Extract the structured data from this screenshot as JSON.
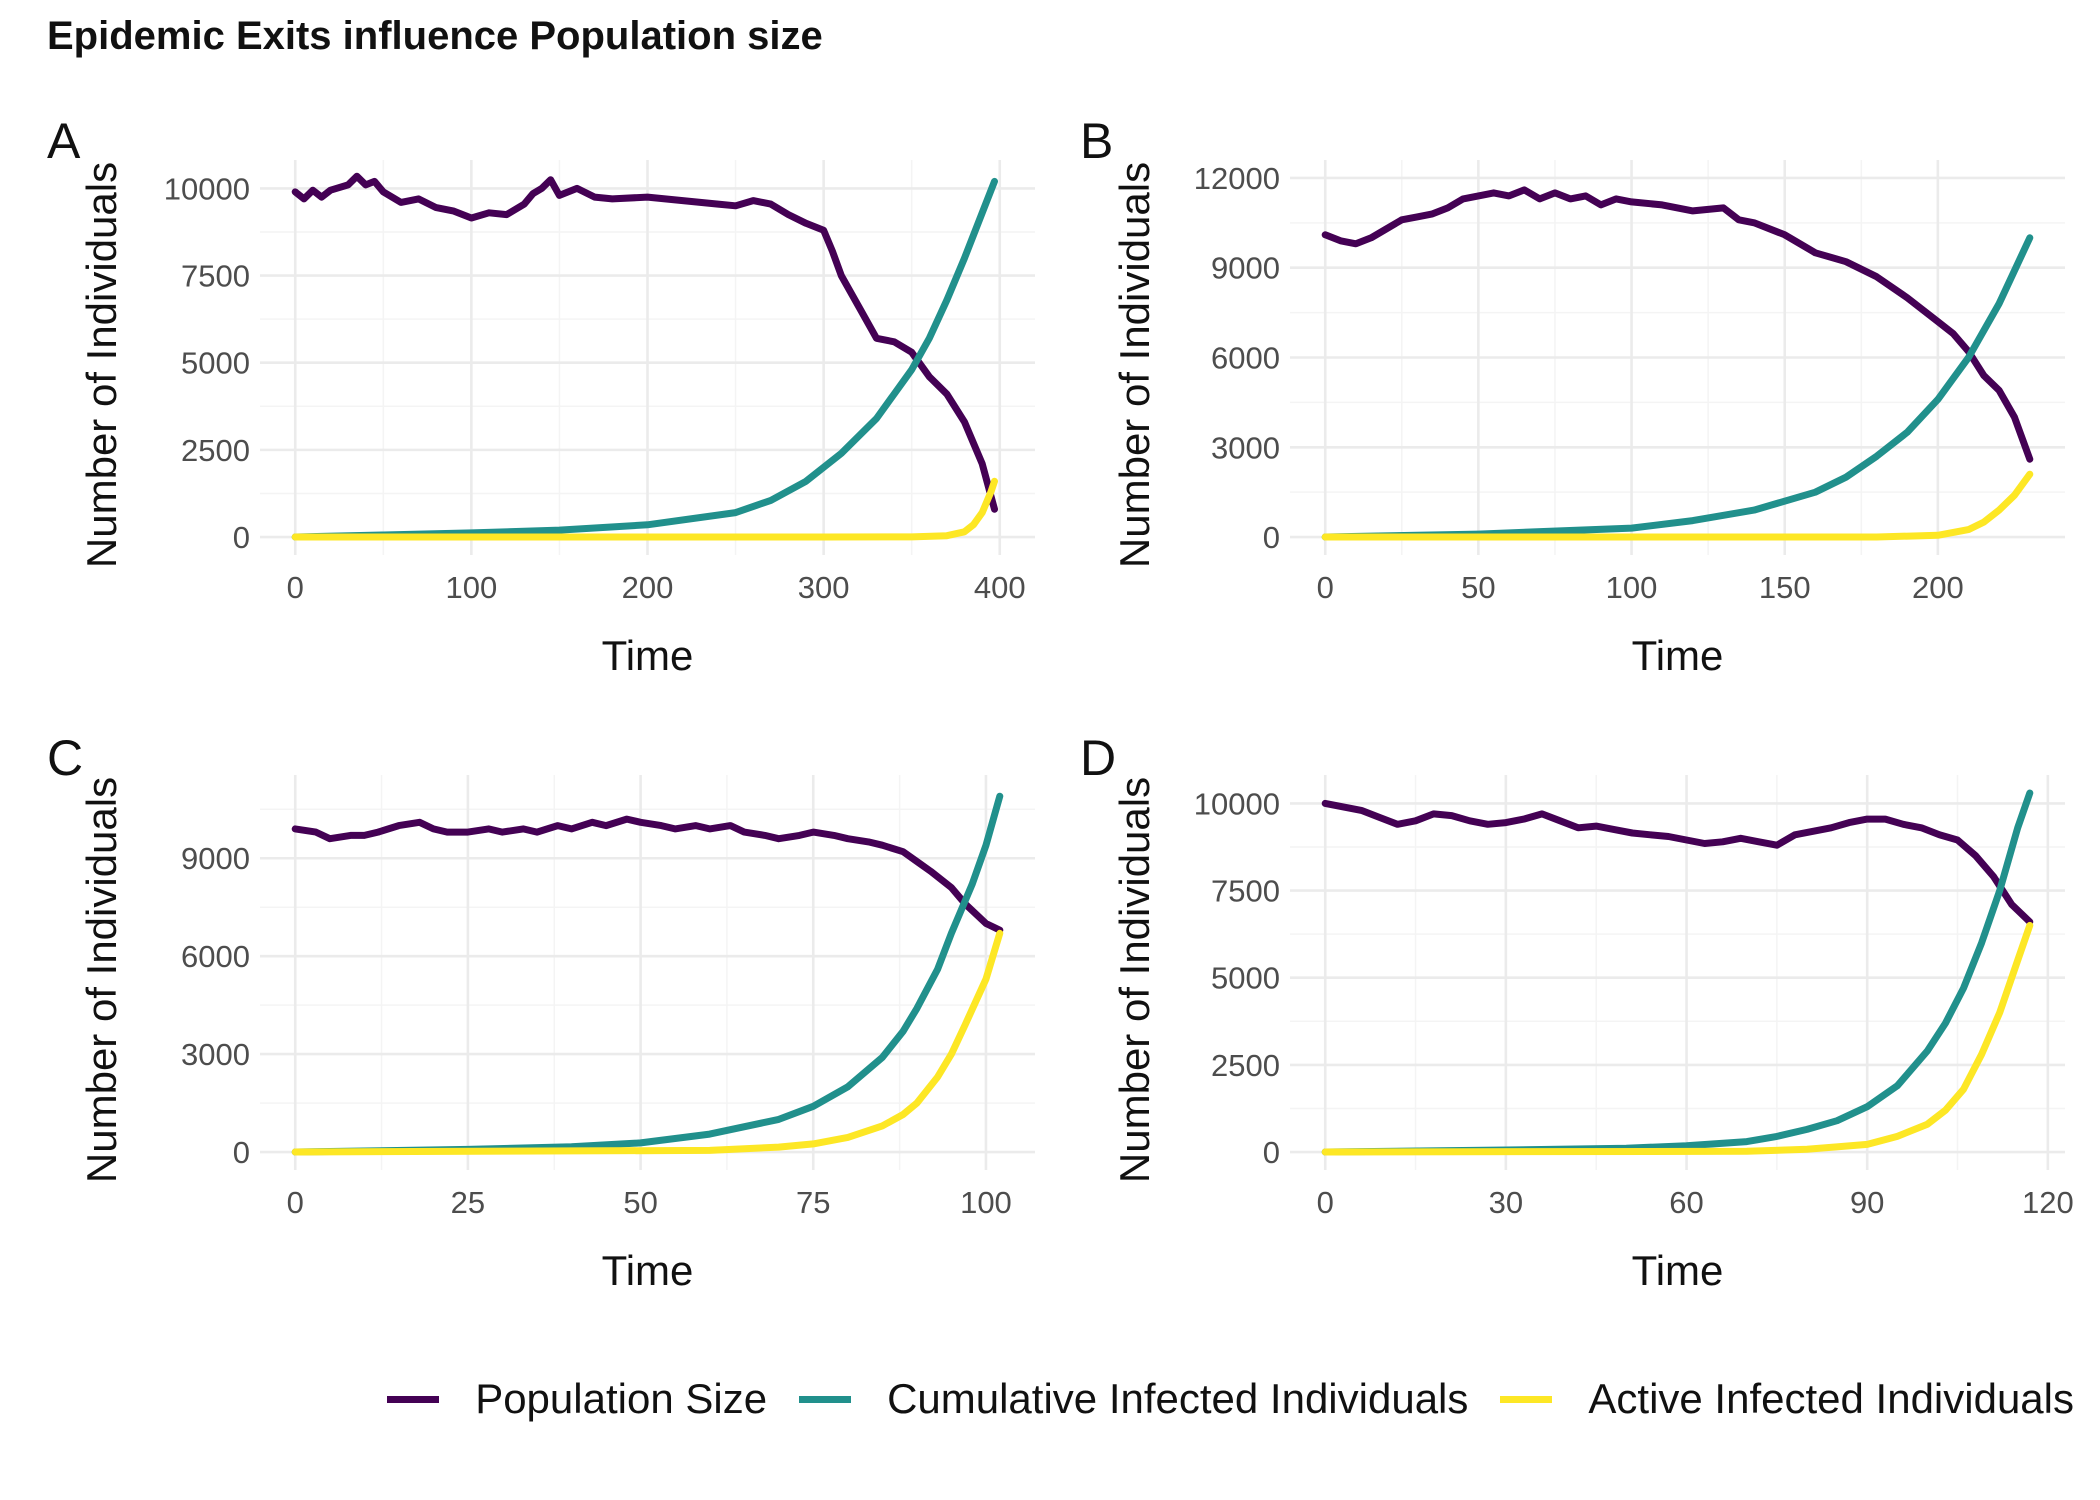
{
  "title": "Epidemic Exits influence Population size",
  "colors": {
    "population": "#440154",
    "cumulative": "#21908c",
    "active": "#fde725"
  },
  "legend": [
    {
      "key": "population",
      "label": "Population Size"
    },
    {
      "key": "cumulative",
      "label": "Cumulative Infected Individuals"
    },
    {
      "key": "active",
      "label": "Active Infected Individuals"
    }
  ],
  "chart_data": [
    {
      "tag": "A",
      "type": "line",
      "xlabel": "Time",
      "ylabel": "Number of Individuals",
      "xlim": [
        0,
        400
      ],
      "ylim": [
        0,
        10300
      ],
      "xticks": [
        0,
        100,
        200,
        300,
        400
      ],
      "yticks": [
        0,
        2500,
        5000,
        7500,
        10000
      ],
      "series": [
        {
          "key": "population",
          "x": [
            0,
            5,
            10,
            15,
            20,
            30,
            35,
            40,
            45,
            50,
            60,
            70,
            80,
            90,
            100,
            110,
            120,
            130,
            135,
            140,
            145,
            150,
            160,
            170,
            180,
            200,
            220,
            240,
            250,
            260,
            270,
            280,
            290,
            300,
            305,
            310,
            320,
            330,
            340,
            350,
            360,
            370,
            380,
            390,
            397
          ],
          "y": [
            9900,
            9700,
            9950,
            9750,
            9950,
            10100,
            10350,
            10100,
            10200,
            9900,
            9600,
            9700,
            9450,
            9350,
            9150,
            9300,
            9250,
            9550,
            9850,
            10000,
            10250,
            9800,
            10000,
            9750,
            9700,
            9750,
            9650,
            9550,
            9500,
            9650,
            9550,
            9250,
            9000,
            8800,
            8200,
            7500,
            6600,
            5700,
            5600,
            5300,
            4600,
            4100,
            3300,
            2100,
            800
          ]
        },
        {
          "key": "cumulative",
          "x": [
            0,
            50,
            100,
            150,
            200,
            250,
            270,
            290,
            310,
            330,
            350,
            360,
            370,
            380,
            390,
            397
          ],
          "y": [
            0,
            60,
            120,
            200,
            350,
            700,
            1050,
            1600,
            2400,
            3400,
            4800,
            5700,
            6800,
            8000,
            9300,
            10200
          ]
        },
        {
          "key": "active",
          "x": [
            0,
            300,
            350,
            370,
            380,
            385,
            390,
            395,
            397
          ],
          "y": [
            0,
            0,
            5,
            40,
            150,
            350,
            700,
            1300,
            1600
          ]
        }
      ]
    },
    {
      "tag": "B",
      "type": "line",
      "xlabel": "Time",
      "ylabel": "Number of Individuals",
      "xlim": [
        0,
        230
      ],
      "ylim": [
        0,
        12000
      ],
      "xticks": [
        0,
        50,
        100,
        150,
        200
      ],
      "yticks": [
        0,
        3000,
        6000,
        9000,
        12000
      ],
      "series": [
        {
          "key": "population",
          "x": [
            0,
            5,
            10,
            15,
            20,
            25,
            30,
            35,
            40,
            45,
            50,
            55,
            60,
            65,
            70,
            75,
            80,
            85,
            90,
            95,
            100,
            110,
            120,
            130,
            135,
            140,
            150,
            160,
            170,
            180,
            190,
            200,
            205,
            210,
            215,
            220,
            225,
            230
          ],
          "y": [
            10100,
            9900,
            9800,
            10000,
            10300,
            10600,
            10700,
            10800,
            11000,
            11300,
            11400,
            11500,
            11400,
            11600,
            11300,
            11500,
            11300,
            11400,
            11100,
            11300,
            11200,
            11100,
            10900,
            11000,
            10600,
            10500,
            10100,
            9500,
            9200,
            8700,
            8000,
            7200,
            6800,
            6200,
            5400,
            4900,
            4000,
            2600
          ]
        },
        {
          "key": "cumulative",
          "x": [
            0,
            50,
            100,
            120,
            140,
            160,
            170,
            180,
            190,
            200,
            210,
            220,
            230
          ],
          "y": [
            0,
            100,
            300,
            550,
            900,
            1500,
            2000,
            2700,
            3500,
            4600,
            6000,
            7800,
            10000
          ]
        },
        {
          "key": "active",
          "x": [
            0,
            180,
            200,
            210,
            215,
            220,
            225,
            230
          ],
          "y": [
            0,
            0,
            60,
            250,
            500,
            900,
            1400,
            2100
          ]
        }
      ]
    },
    {
      "tag": "C",
      "type": "line",
      "xlabel": "Time",
      "ylabel": "Number of Individuals",
      "xlim": [
        0,
        102
      ],
      "ylim": [
        0,
        11000
      ],
      "xticks": [
        0,
        25,
        50,
        75,
        100
      ],
      "yticks": [
        0,
        3000,
        6000,
        9000
      ],
      "series": [
        {
          "key": "population",
          "x": [
            0,
            3,
            5,
            8,
            10,
            12,
            15,
            18,
            20,
            22,
            25,
            28,
            30,
            33,
            35,
            38,
            40,
            43,
            45,
            48,
            50,
            53,
            55,
            58,
            60,
            63,
            65,
            68,
            70,
            73,
            75,
            78,
            80,
            83,
            85,
            88,
            90,
            92,
            95,
            97,
            100,
            102
          ],
          "y": [
            9900,
            9800,
            9600,
            9700,
            9700,
            9800,
            10000,
            10100,
            9900,
            9800,
            9800,
            9900,
            9800,
            9900,
            9800,
            10000,
            9900,
            10100,
            10000,
            10200,
            10100,
            10000,
            9900,
            10000,
            9900,
            10000,
            9800,
            9700,
            9600,
            9700,
            9800,
            9700,
            9600,
            9500,
            9400,
            9200,
            8900,
            8600,
            8100,
            7600,
            7000,
            6800
          ]
        },
        {
          "key": "cumulative",
          "x": [
            0,
            25,
            40,
            50,
            60,
            70,
            75,
            80,
            85,
            88,
            90,
            93,
            95,
            98,
            100,
            102
          ],
          "y": [
            0,
            80,
            160,
            280,
            550,
            1000,
            1400,
            2000,
            2900,
            3700,
            4400,
            5600,
            6700,
            8200,
            9400,
            10900
          ]
        },
        {
          "key": "active",
          "x": [
            0,
            60,
            70,
            75,
            80,
            85,
            88,
            90,
            93,
            95,
            97,
            100,
            102
          ],
          "y": [
            0,
            50,
            150,
            250,
            450,
            800,
            1150,
            1500,
            2300,
            3000,
            3900,
            5300,
            6700
          ]
        }
      ]
    },
    {
      "tag": "D",
      "type": "line",
      "xlabel": "Time",
      "ylabel": "Number of Individuals",
      "xlim": [
        0,
        117
      ],
      "ylim": [
        0,
        10300
      ],
      "xticks": [
        0,
        30,
        60,
        90,
        120
      ],
      "yticks": [
        0,
        2500,
        5000,
        7500,
        10000
      ],
      "series": [
        {
          "key": "population",
          "x": [
            0,
            3,
            6,
            9,
            12,
            15,
            18,
            21,
            24,
            27,
            30,
            33,
            36,
            39,
            42,
            45,
            48,
            51,
            54,
            57,
            60,
            63,
            66,
            69,
            72,
            75,
            78,
            81,
            84,
            87,
            90,
            93,
            96,
            99,
            102,
            105,
            108,
            111,
            114,
            117
          ],
          "y": [
            10000,
            9900,
            9800,
            9600,
            9400,
            9500,
            9700,
            9650,
            9500,
            9400,
            9450,
            9550,
            9700,
            9500,
            9300,
            9350,
            9250,
            9150,
            9100,
            9050,
            8950,
            8850,
            8900,
            9000,
            8900,
            8800,
            9100,
            9200,
            9300,
            9450,
            9550,
            9550,
            9400,
            9300,
            9100,
            8950,
            8500,
            7900,
            7100,
            6600
          ]
        },
        {
          "key": "cumulative",
          "x": [
            0,
            30,
            50,
            60,
            70,
            75,
            80,
            85,
            90,
            95,
            100,
            103,
            106,
            109,
            112,
            115,
            117
          ],
          "y": [
            0,
            60,
            110,
            180,
            300,
            450,
            650,
            900,
            1300,
            1900,
            2900,
            3700,
            4700,
            6000,
            7500,
            9300,
            10300
          ]
        },
        {
          "key": "active",
          "x": [
            0,
            70,
            80,
            90,
            95,
            100,
            103,
            106,
            109,
            112,
            115,
            117
          ],
          "y": [
            0,
            20,
            80,
            220,
            450,
            800,
            1200,
            1800,
            2800,
            4000,
            5500,
            6500
          ]
        }
      ]
    }
  ]
}
